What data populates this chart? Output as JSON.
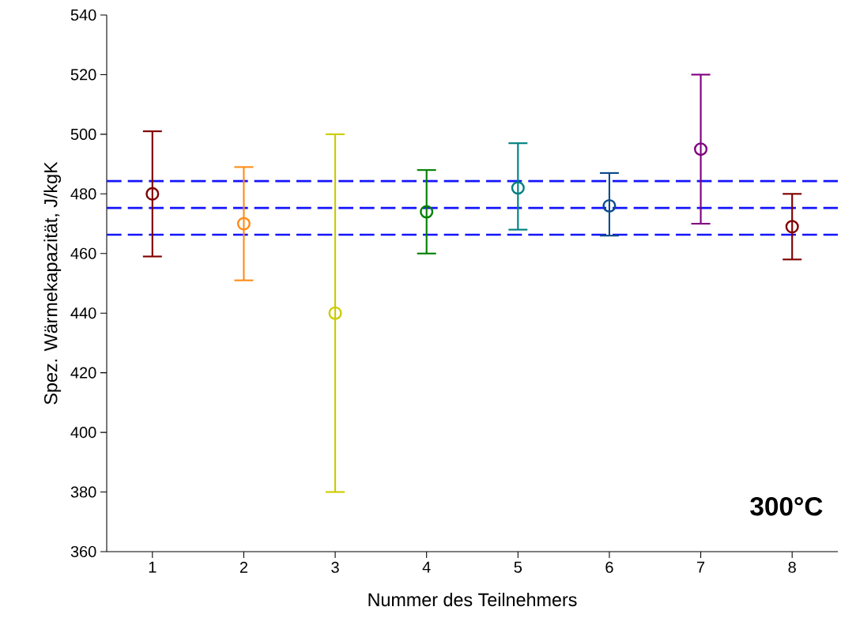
{
  "chart_data": {
    "type": "scatter",
    "xlabel": "Nummer des Teilnehmers",
    "ylabel": "Spez. Wärmekapazität, J/kgK",
    "annotations": [
      "300°C"
    ],
    "x": [
      1,
      2,
      3,
      4,
      5,
      6,
      7,
      8
    ],
    "values": [
      480,
      470,
      440,
      474,
      482,
      476,
      495,
      469
    ],
    "errors": [
      [
        459,
        501
      ],
      [
        451,
        489
      ],
      [
        380,
        500
      ],
      [
        460,
        488
      ],
      [
        468,
        497
      ],
      [
        466,
        487
      ],
      [
        470,
        520
      ],
      [
        458,
        480
      ]
    ],
    "colors": [
      "#800000",
      "#ff8c1a",
      "#cccc00",
      "#008000",
      "#008080",
      "#0b4a8a",
      "#800080",
      "#800000"
    ],
    "marker": "circle",
    "xlim": [
      0.5,
      8.5
    ],
    "xticks": [
      1,
      2,
      3,
      4,
      5,
      6,
      7,
      8
    ],
    "ylim": [
      360,
      540
    ],
    "yticks": [
      360,
      380,
      400,
      420,
      440,
      460,
      480,
      500,
      520,
      540
    ],
    "ref_lines": [
      {
        "axis": "y",
        "value": 484.3,
        "color": "#1414ff",
        "line_style": "dashed"
      },
      {
        "axis": "y",
        "value": 475.3,
        "color": "#1414ff",
        "line_style": "dashed"
      },
      {
        "axis": "y",
        "value": 466.3,
        "color": "#1414ff",
        "line_style": "dashed"
      }
    ]
  }
}
